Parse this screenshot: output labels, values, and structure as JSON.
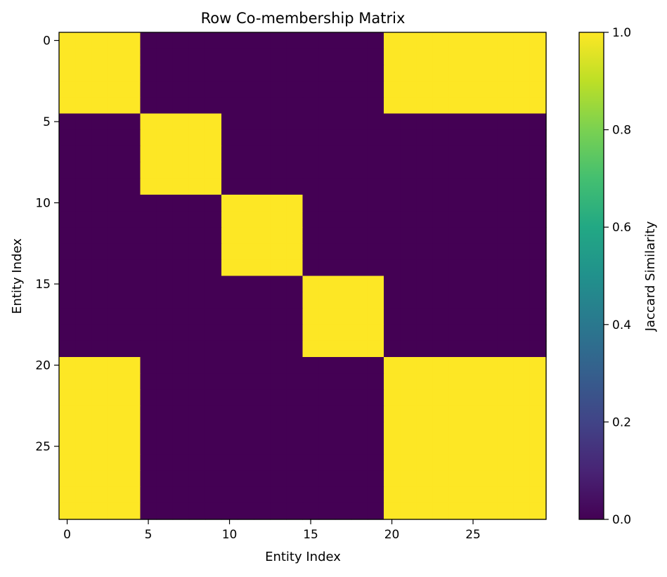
{
  "chart_data": {
    "type": "heatmap",
    "title": "Row Co-membership Matrix",
    "xlabel": "Entity Index",
    "ylabel": "Entity Index",
    "n": 30,
    "x_ticks": [
      0,
      5,
      10,
      15,
      20,
      25
    ],
    "y_ticks": [
      0,
      5,
      10,
      15,
      20,
      25
    ],
    "block_size": 5,
    "block_clusters": [
      0,
      1,
      2,
      3,
      0,
      0
    ],
    "value_in_cluster": 1.0,
    "value_out_cluster": 0.0,
    "colormap": "viridis",
    "colorbar": {
      "label": "Jaccard Similarity",
      "range": [
        0.0,
        1.0
      ],
      "ticks": [
        "0.0",
        "0.2",
        "0.4",
        "0.6",
        "0.8",
        "1.0"
      ]
    },
    "colors": {
      "low": "#440154",
      "high": "#fde725"
    }
  }
}
